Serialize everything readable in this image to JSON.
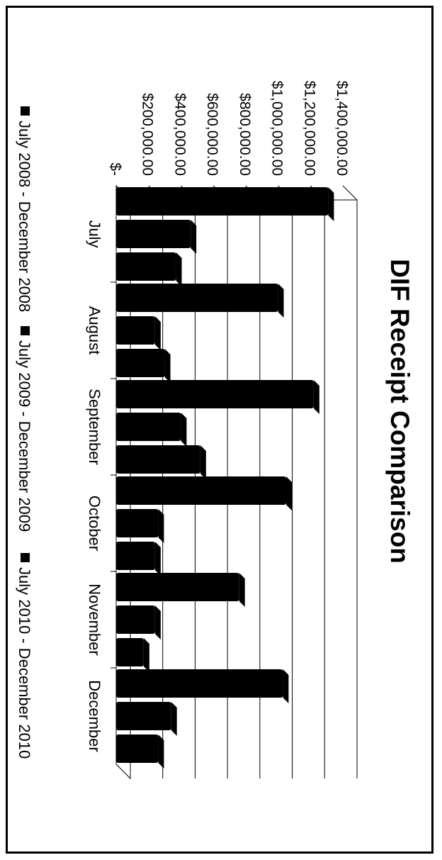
{
  "chart_data": {
    "type": "bar",
    "title": "DIF Receipt Comparison",
    "xlabel": "",
    "ylabel": "",
    "categories": [
      "July",
      "August",
      "September",
      "October",
      "November",
      "December"
    ],
    "y_ticks": [
      "$-",
      "$200,000.00",
      "$400,000.00",
      "$600,000.00",
      "$800,000.00",
      "$1,000,000.00",
      "$1,200,000.00",
      "$1,400,000.00"
    ],
    "ylim": [
      0,
      1400000
    ],
    "grid": true,
    "legend_position": "bottom",
    "series": [
      {
        "name": "July 2008 - December 2008",
        "values": [
          1310000,
          1000000,
          1220000,
          1050000,
          760000,
          1030000
        ]
      },
      {
        "name": "July 2009 - December 2009",
        "values": [
          460000,
          240000,
          400000,
          260000,
          240000,
          340000
        ]
      },
      {
        "name": "July 2010 - December 2010",
        "values": [
          370000,
          300000,
          520000,
          240000,
          170000,
          260000
        ]
      }
    ],
    "colors": [
      "#000000",
      "#000000",
      "#000000"
    ]
  }
}
